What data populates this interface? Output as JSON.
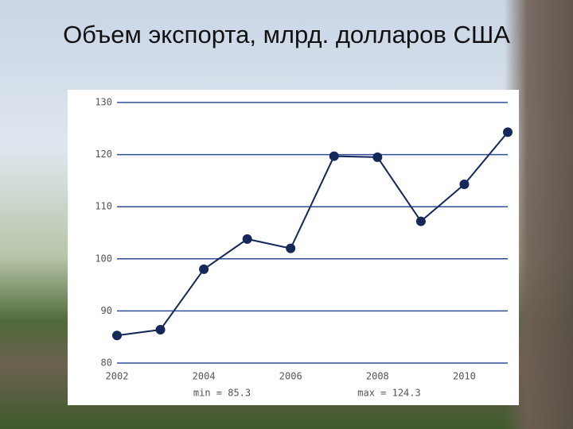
{
  "chart_data": {
    "type": "line",
    "title": "Объем экспорта, млрд. долларов США",
    "x": [
      2002,
      2003,
      2004,
      2005,
      2006,
      2007,
      2008,
      2009,
      2010,
      2011
    ],
    "series": [
      {
        "color": "#14285a",
        "values": [
          85.3,
          86.4,
          98.0,
          103.8,
          102.0,
          119.7,
          119.5,
          107.2,
          114.3,
          124.3
        ]
      }
    ],
    "xlim": [
      2002,
      2011
    ],
    "xticks": [
      2002,
      2004,
      2006,
      2008,
      2010
    ],
    "ylim": [
      80,
      130
    ],
    "yticks": [
      80,
      90,
      100,
      110,
      120,
      130
    ],
    "grid": true,
    "grid_color": "#2f4f94",
    "annotations": [
      {
        "text": "min = 85.3"
      },
      {
        "text": "max = 124.3"
      }
    ]
  }
}
